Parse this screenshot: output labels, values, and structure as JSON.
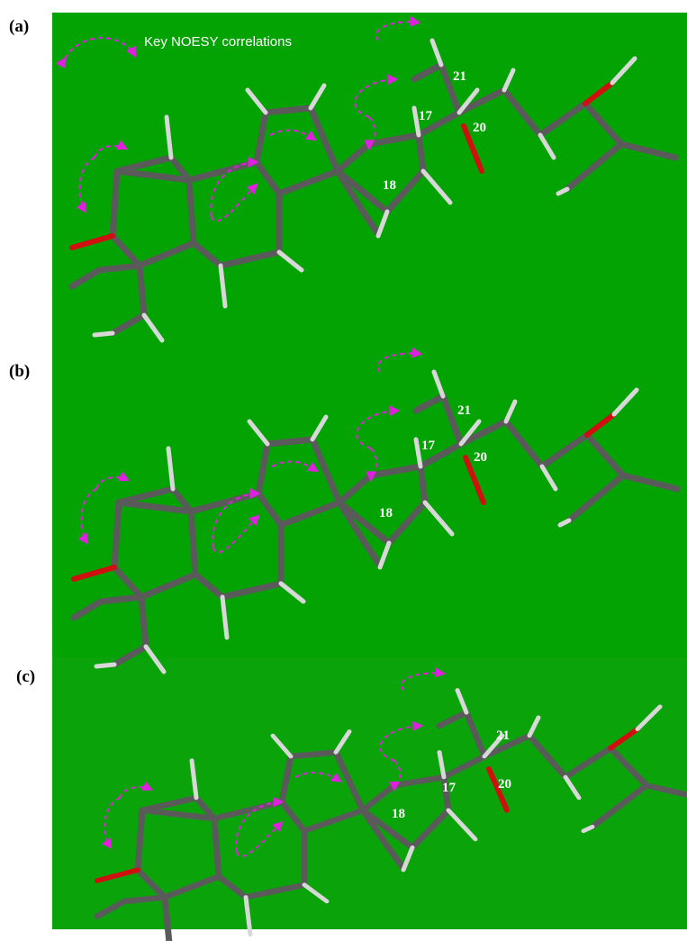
{
  "figure": {
    "legend": "Key NOESY correlations",
    "panels": [
      {
        "label": "(a)",
        "atoms": [
          "21",
          "17",
          "20",
          "18"
        ]
      },
      {
        "label": "(b)",
        "atoms": [
          "21",
          "17",
          "20",
          "18"
        ]
      },
      {
        "label": "(c)",
        "atoms": [
          "21",
          "17",
          "20",
          "18"
        ]
      }
    ]
  }
}
